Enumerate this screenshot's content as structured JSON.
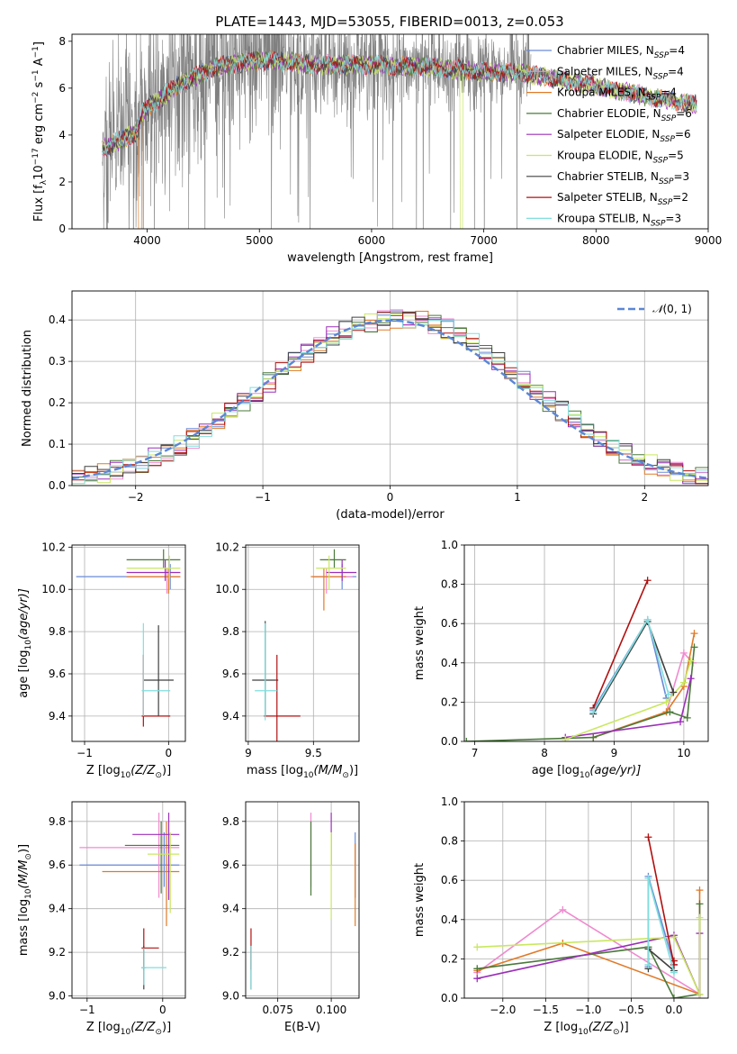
{
  "figure_title": "PLATE=1443, MJD=53055, FIBERID=0013, z=0.053",
  "colors": [
    "#6a8ad8",
    "#f08ad0",
    "#e07a28",
    "#4a7a3a",
    "#9b2fb8",
    "#c9e860",
    "#404040",
    "#b01010",
    "#80dede"
  ],
  "chart_data": [
    {
      "type": "line",
      "id": "spectrum",
      "xlabel": "wavelength [Angstrom, rest frame]",
      "ylabel_parts": [
        "Flux [f",
        "λ",
        "10",
        "−17",
        " erg cm",
        "−2",
        " s",
        "−1",
        " A",
        "−1",
        "]"
      ],
      "xlim": [
        3330,
        9000
      ],
      "ylim": [
        0,
        8.3
      ],
      "xticks": [
        4000,
        5000,
        6000,
        7000,
        8000,
        9000
      ],
      "yticks": [
        0,
        2,
        4,
        6,
        8
      ],
      "grid": false,
      "legend_position": "top-right",
      "observed_range": [
        3600,
        7420
      ],
      "model_range": [
        3600,
        8900
      ],
      "continuum": [
        [
          3600,
          3.4
        ],
        [
          3900,
          4.1
        ],
        [
          3960,
          5.0
        ],
        [
          4300,
          6.2
        ],
        [
          4600,
          6.9
        ],
        [
          5000,
          7.2
        ],
        [
          5500,
          7.0
        ],
        [
          6000,
          7.0
        ],
        [
          6500,
          6.9
        ],
        [
          7000,
          6.7
        ],
        [
          7400,
          6.6
        ],
        [
          8000,
          6.1
        ],
        [
          8500,
          5.6
        ],
        [
          8900,
          5.3
        ]
      ],
      "series": [
        {
          "name": [
            "Chabrier MILES, N",
            "SSP",
            "=4"
          ]
        },
        {
          "name": [
            "Salpeter MILES, N",
            "SSP",
            "=4"
          ]
        },
        {
          "name": [
            "Kroupa MILES, N",
            "SSP",
            "=4"
          ]
        },
        {
          "name": [
            "Chabrier ELODIE, N",
            "SSP",
            "=6"
          ]
        },
        {
          "name": [
            "Salpeter ELODIE, N",
            "SSP",
            "=6"
          ]
        },
        {
          "name": [
            "Kroupa ELODIE, N",
            "SSP",
            "=5"
          ]
        },
        {
          "name": [
            "Chabrier STELIB, N",
            "SSP",
            "=3"
          ]
        },
        {
          "name": [
            "Salpeter STELIB, N",
            "SSP",
            "=2"
          ]
        },
        {
          "name": [
            "Kroupa STELIB, N",
            "SSP",
            "=3"
          ]
        }
      ]
    },
    {
      "type": "step",
      "id": "residuals",
      "xlabel": "(data-model)/error",
      "ylabel": "Normed distribution",
      "xlim": [
        -2.5,
        2.5
      ],
      "ylim": [
        0,
        0.47
      ],
      "xticks": [
        -2,
        -1,
        0,
        1,
        2
      ],
      "yticks": [
        0.0,
        0.1,
        0.2,
        0.3,
        0.4
      ],
      "grid": true,
      "legend": {
        "label_prefix": "𝒩",
        "label_args": "(0, 1)",
        "position": "top-right"
      },
      "reference_curve": "normal(0,1)"
    },
    {
      "type": "errorbar",
      "id": "age-vs-Z",
      "xlabel_parts": [
        "Z [log",
        "10",
        "(Z/Z",
        "⊙",
        ")]"
      ],
      "ylabel_parts": [
        "age  [log",
        "10",
        "(age/yr)]"
      ],
      "xlim": [
        -1.15,
        0.2
      ],
      "ylim": [
        9.28,
        10.21
      ],
      "xticks": [
        -1,
        0
      ],
      "yticks": [
        9.4,
        9.6,
        9.8,
        10.0,
        10.2
      ],
      "grid": true,
      "points": [
        {
          "c": 0,
          "x": 0.02,
          "y": 10.06,
          "xl": -1.1,
          "xh": 0.14,
          "yl": 10.0,
          "yh": 10.12
        },
        {
          "c": 1,
          "x": -0.02,
          "y": 10.06,
          "xl": -0.5,
          "xh": 0.14,
          "yl": 9.98,
          "yh": 10.1
        },
        {
          "c": 2,
          "x": 0.0,
          "y": 10.06,
          "xl": -0.5,
          "xh": 0.14,
          "yl": 9.98,
          "yh": 10.1
        },
        {
          "c": 3,
          "x": -0.06,
          "y": 10.14,
          "xl": -0.5,
          "xh": 0.14,
          "yl": 10.1,
          "yh": 10.19
        },
        {
          "c": 4,
          "x": -0.04,
          "y": 10.08,
          "xl": -0.5,
          "xh": 0.14,
          "yl": 10.04,
          "yh": 10.14
        },
        {
          "c": 5,
          "x": 0.01,
          "y": 10.1,
          "xl": -0.5,
          "xh": 0.14,
          "yl": 10.05,
          "yh": 10.16
        },
        {
          "c": 6,
          "x": -0.12,
          "y": 9.57,
          "xl": -0.3,
          "xh": 0.06,
          "yl": 9.4,
          "yh": 9.83
        },
        {
          "c": 7,
          "x": -0.3,
          "y": 9.4,
          "xl": -0.32,
          "xh": 0.02,
          "yl": 9.35,
          "yh": 9.69
        },
        {
          "c": 8,
          "x": -0.3,
          "y": 9.52,
          "xl": -0.32,
          "xh": 0.02,
          "yl": 9.4,
          "yh": 9.84
        }
      ]
    },
    {
      "type": "errorbar",
      "id": "age-vs-mass",
      "xlabel_parts": [
        "mass [log",
        "10",
        "(M/M",
        "⊙",
        ")]"
      ],
      "xlim": [
        8.98,
        9.85
      ],
      "ylim": [
        9.28,
        10.21
      ],
      "xticks": [
        9.0,
        9.5
      ],
      "yticks": [
        9.4,
        9.6,
        9.8,
        10.0,
        10.2
      ],
      "grid": true,
      "points": [
        {
          "c": 0,
          "x": 9.72,
          "y": 10.06,
          "xl": 9.5,
          "xh": 9.83,
          "yl": 10.0,
          "yh": 10.12
        },
        {
          "c": 1,
          "x": 9.6,
          "y": 10.06,
          "xl": 9.5,
          "xh": 9.8,
          "yl": 9.98,
          "yh": 10.1
        },
        {
          "c": 2,
          "x": 9.58,
          "y": 10.06,
          "xl": 9.48,
          "xh": 9.75,
          "yl": 9.9,
          "yh": 10.1
        },
        {
          "c": 3,
          "x": 9.66,
          "y": 10.14,
          "xl": 9.55,
          "xh": 9.75,
          "yl": 10.1,
          "yh": 10.19
        },
        {
          "c": 4,
          "x": 9.72,
          "y": 10.08,
          "xl": 9.6,
          "xh": 9.83,
          "yl": 10.04,
          "yh": 10.14
        },
        {
          "c": 5,
          "x": 9.62,
          "y": 10.1,
          "xl": 9.52,
          "xh": 9.75,
          "yl": 10.0,
          "yh": 10.16
        },
        {
          "c": 6,
          "x": 9.13,
          "y": 9.57,
          "xl": 9.03,
          "xh": 9.23,
          "yl": 9.4,
          "yh": 9.85
        },
        {
          "c": 7,
          "x": 9.22,
          "y": 9.4,
          "xl": 9.12,
          "xh": 9.4,
          "yl": 9.22,
          "yh": 9.69
        },
        {
          "c": 8,
          "x": 9.13,
          "y": 9.52,
          "xl": 9.05,
          "xh": 9.22,
          "yl": 9.38,
          "yh": 9.84
        }
      ]
    },
    {
      "type": "line",
      "id": "massweight-vs-age",
      "xlabel_parts": [
        "age  [log",
        "10",
        "(age/yr)]"
      ],
      "ylabel": "mass weight",
      "xlim": [
        6.85,
        10.35
      ],
      "ylim": [
        0,
        1.0
      ],
      "xticks": [
        7,
        8,
        9,
        10
      ],
      "yticks": [
        0.0,
        0.2,
        0.4,
        0.6,
        0.8,
        1.0
      ],
      "grid": true,
      "series": [
        {
          "c": 0,
          "x": [
            8.7,
            9.48,
            9.75
          ],
          "y": [
            0.16,
            0.62,
            0.22
          ]
        },
        {
          "c": 1,
          "x": [
            8.7,
            9.75,
            10.0,
            10.13
          ],
          "y": [
            0.02,
            0.15,
            0.45,
            0.4
          ]
        },
        {
          "c": 2,
          "x": [
            8.7,
            9.75,
            10.0,
            10.15
          ],
          "y": [
            0.02,
            0.15,
            0.28,
            0.55
          ]
        },
        {
          "c": 3,
          "x": [
            6.88,
            8.7,
            9.8,
            10.05,
            10.15
          ],
          "y": [
            0.0,
            0.02,
            0.15,
            0.12,
            0.48
          ]
        },
        {
          "c": 4,
          "x": [
            8.3,
            9.95,
            10.1
          ],
          "y": [
            0.02,
            0.1,
            0.32
          ]
        },
        {
          "c": 5,
          "x": [
            8.3,
            9.75,
            10.0,
            10.1
          ],
          "y": [
            0.01,
            0.2,
            0.3,
            0.41
          ]
        },
        {
          "c": 6,
          "x": [
            8.7,
            9.48,
            9.85
          ],
          "y": [
            0.14,
            0.61,
            0.25
          ]
        },
        {
          "c": 7,
          "x": [
            8.7,
            9.48
          ],
          "y": [
            0.17,
            0.82
          ]
        },
        {
          "c": 8,
          "x": [
            8.7,
            9.48,
            9.78
          ],
          "y": [
            0.15,
            0.62,
            0.24
          ]
        }
      ]
    },
    {
      "type": "errorbar",
      "id": "mass-vs-Z",
      "xlabel_parts": [
        "Z [log",
        "10",
        "(Z/Z",
        "⊙",
        ")]"
      ],
      "ylabel_parts": [
        "mass [log",
        "10",
        "(M/M",
        "⊙",
        ")]"
      ],
      "xlim": [
        -1.2,
        0.3
      ],
      "ylim": [
        8.99,
        9.89
      ],
      "xticks": [
        -1,
        0
      ],
      "yticks": [
        9.0,
        9.2,
        9.4,
        9.6,
        9.8
      ],
      "grid": true,
      "points": [
        {
          "c": 0,
          "x": 0.02,
          "y": 9.6,
          "xl": -1.1,
          "xh": 0.22,
          "yl": 9.5,
          "yh": 9.75
        },
        {
          "c": 1,
          "x": -0.05,
          "y": 9.68,
          "xl": -1.1,
          "xh": 0.22,
          "yl": 9.45,
          "yh": 9.84
        },
        {
          "c": 2,
          "x": 0.05,
          "y": 9.57,
          "xl": -0.8,
          "xh": 0.22,
          "yl": 9.32,
          "yh": 9.8
        },
        {
          "c": 3,
          "x": -0.02,
          "y": 9.69,
          "xl": -0.5,
          "xh": 0.22,
          "yl": 9.47,
          "yh": 9.8
        },
        {
          "c": 4,
          "x": 0.08,
          "y": 9.74,
          "xl": -0.4,
          "xh": 0.22,
          "yl": 9.44,
          "yh": 9.84
        },
        {
          "c": 5,
          "x": 0.1,
          "y": 9.65,
          "xl": -0.2,
          "xh": 0.22,
          "yl": 9.38,
          "yh": 9.75
        },
        {
          "c": 6,
          "x": -0.25,
          "y": 9.13,
          "xl": -0.28,
          "xh": -0.22,
          "yl": 9.03,
          "yh": 9.23
        },
        {
          "c": 7,
          "x": -0.25,
          "y": 9.22,
          "xl": -0.28,
          "xh": -0.05,
          "yl": 9.12,
          "yh": 9.31
        },
        {
          "c": 8,
          "x": -0.25,
          "y": 9.13,
          "xl": -0.28,
          "xh": 0.05,
          "yl": 9.05,
          "yh": 9.22
        }
      ]
    },
    {
      "type": "errorbar",
      "id": "mass-vs-EBV",
      "xlabel": "E(B-V)",
      "xlim": [
        0.06,
        0.113
      ],
      "ylim": [
        8.99,
        9.89
      ],
      "xticks": [
        0.075,
        0.1
      ],
      "xtick_labels": [
        "0.075",
        "0.100"
      ],
      "yticks": [
        9.0,
        9.2,
        9.4,
        9.6,
        9.8
      ],
      "grid": true,
      "points": [
        {
          "c": 0,
          "x": 0.1112,
          "y": 9.6,
          "yl": 9.45,
          "yh": 9.75
        },
        {
          "c": 1,
          "x": 0.0905,
          "y": 9.68,
          "yl": 9.5,
          "yh": 9.84
        },
        {
          "c": 2,
          "x": 0.1112,
          "y": 9.52,
          "yl": 9.32,
          "yh": 9.7
        },
        {
          "c": 3,
          "x": 0.0905,
          "y": 9.62,
          "yl": 9.46,
          "yh": 9.8
        },
        {
          "c": 4,
          "x": 0.1,
          "y": 9.74,
          "yl": 9.6,
          "yh": 9.84
        },
        {
          "c": 5,
          "x": 0.1,
          "y": 9.55,
          "yl": 9.35,
          "yh": 9.75
        },
        {
          "c": 6,
          "x": 0.0625,
          "y": 9.13,
          "yl": 9.03,
          "yh": 9.23
        },
        {
          "c": 7,
          "x": 0.0625,
          "y": 9.22,
          "yl": 9.12,
          "yh": 9.31
        },
        {
          "c": 8,
          "x": 0.0625,
          "y": 9.13,
          "yl": 9.03,
          "yh": 9.23
        }
      ]
    },
    {
      "type": "line",
      "id": "massweight-vs-Z",
      "xlabel_parts": [
        "Z [log",
        "10",
        "(Z/Z",
        "⊙",
        ")]"
      ],
      "ylabel": "mass weight",
      "xlim": [
        -2.45,
        0.4
      ],
      "ylim": [
        0,
        1.0
      ],
      "xticks": [
        -2.0,
        -1.5,
        -1.0,
        -0.5,
        0.0
      ],
      "xtick_labels": [
        "−2.0",
        "−1.5",
        "−1.0",
        "−0.5",
        "0.0"
      ],
      "yticks": [
        0.0,
        0.2,
        0.4,
        0.6,
        0.8,
        1.0
      ],
      "grid": true,
      "series": [
        {
          "c": 0,
          "x": [
            -0.3,
            -0.3,
            0.0
          ],
          "y": [
            0.16,
            0.62,
            0.17
          ]
        },
        {
          "c": 1,
          "x": [
            -2.3,
            -1.3,
            0.3
          ],
          "y": [
            0.13,
            0.45,
            0.02
          ]
        },
        {
          "c": 2,
          "x": [
            -2.3,
            -1.3,
            0.3,
            0.3
          ],
          "y": [
            0.14,
            0.28,
            0.02,
            0.55
          ]
        },
        {
          "c": 3,
          "x": [
            -2.3,
            -0.3,
            0.0,
            0.3,
            0.3
          ],
          "y": [
            0.15,
            0.26,
            0.0,
            0.02,
            0.48
          ]
        },
        {
          "c": 4,
          "x": [
            -2.3,
            0.0,
            0.3,
            0.3
          ],
          "y": [
            0.1,
            0.32,
            0.02,
            0.33
          ]
        },
        {
          "c": 5,
          "x": [
            -2.3,
            0.0,
            0.3,
            0.3
          ],
          "y": [
            0.26,
            0.31,
            0.02,
            0.41
          ]
        },
        {
          "c": 6,
          "x": [
            -0.3,
            -0.3,
            0.0
          ],
          "y": [
            0.15,
            0.25,
            0.14
          ]
        },
        {
          "c": 7,
          "x": [
            -0.3,
            0.0,
            0.0
          ],
          "y": [
            0.82,
            0.17,
            0.19
          ]
        },
        {
          "c": 8,
          "x": [
            -0.3,
            -0.3,
            0.0
          ],
          "y": [
            0.17,
            0.61,
            0.13
          ]
        }
      ]
    }
  ]
}
